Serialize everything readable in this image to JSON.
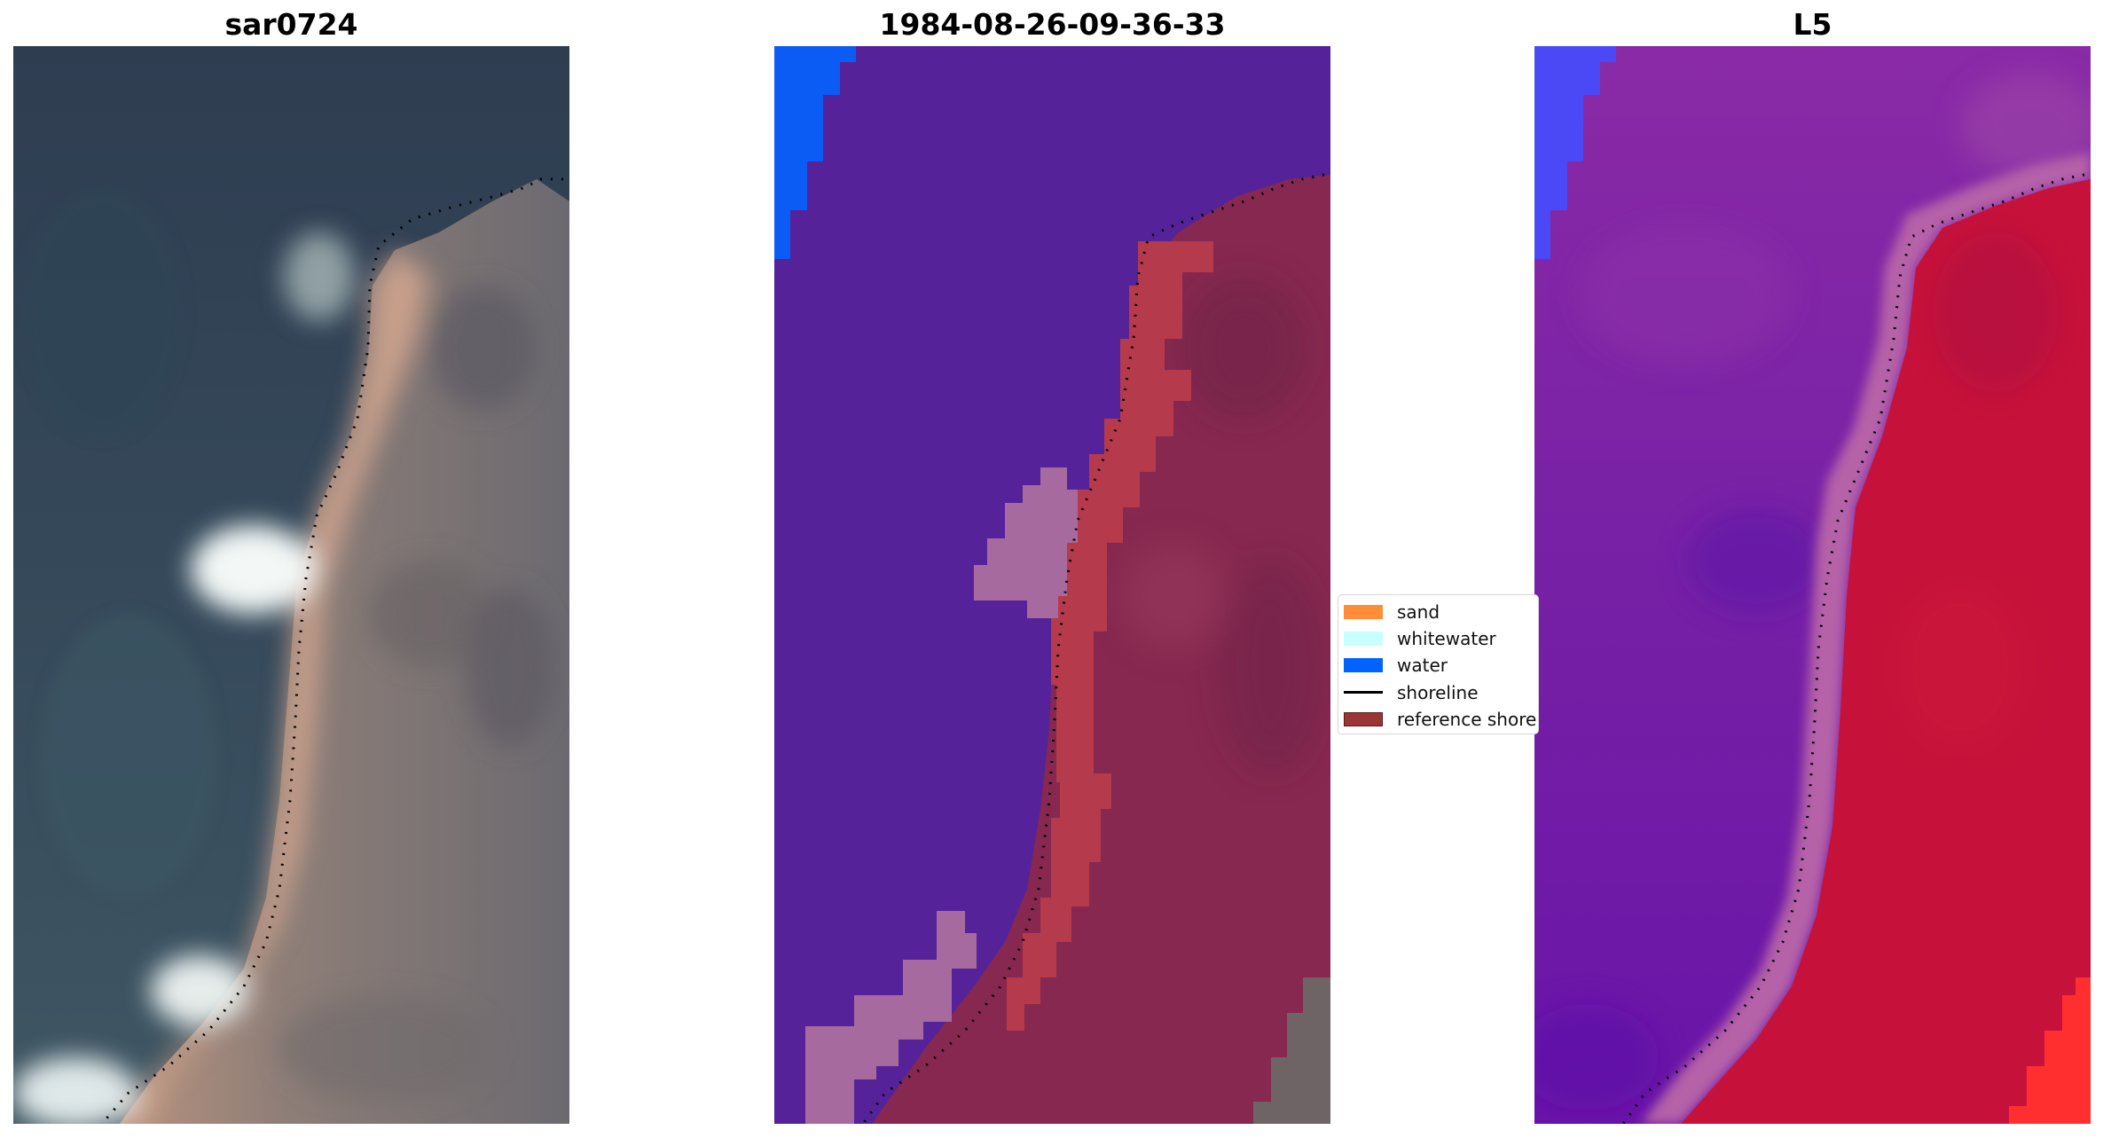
{
  "panels": [
    {
      "title": "sar0724",
      "content": "rgb-image"
    },
    {
      "title": "1984-08-26-09-36-33",
      "content": "classified-image"
    },
    {
      "title": "L5",
      "content": "mndwi-image"
    }
  ],
  "legend": {
    "items": [
      {
        "label": "sand",
        "color": "#FF8C39",
        "kind": "patch"
      },
      {
        "label": "whitewater",
        "color": "#C8FFFF",
        "kind": "patch"
      },
      {
        "label": "water",
        "color": "#0062FF",
        "kind": "patch"
      },
      {
        "label": "shoreline",
        "color": "#000000",
        "kind": "line"
      },
      {
        "label": "reference shoreline",
        "color": "#9B3535",
        "kind": "patch"
      }
    ]
  },
  "colors": {
    "rgb_sea": "#35495a",
    "rgb_land": "#7b7270",
    "rgb_beach": "#cfa48e",
    "rgb_surf": "#eef4f2",
    "class_other": "#55229a",
    "class_land": "#86284f",
    "class_reference": "#b43a4c",
    "class_surf": "#a76a9f",
    "class_water": "#0a5cf5",
    "mndwi_water": "#7c1fa3",
    "mndwi_land": "#c6123a",
    "mndwi_transition": "#b562a8",
    "mndwi_blue": "#4b48f5",
    "mndwi_red": "#ff2f2f"
  }
}
